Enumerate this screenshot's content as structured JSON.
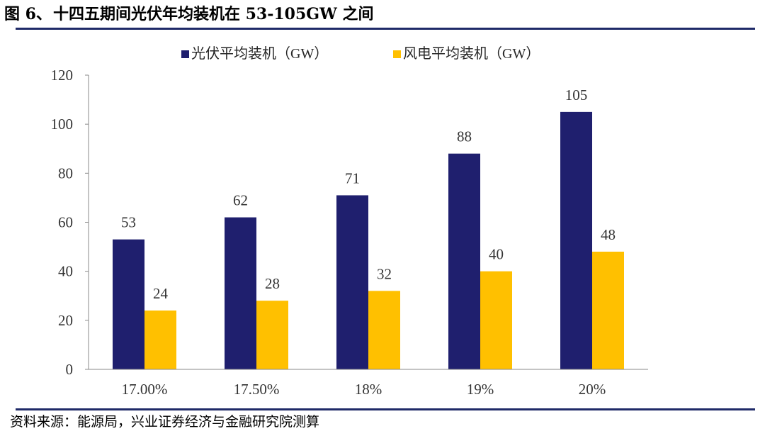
{
  "figure": {
    "label": "图 6、",
    "title": "十四五期间光伏年均装机在 53-105GW 之间"
  },
  "source": {
    "label": "资料来源：",
    "text": "能源局，兴业证券经济与金融研究院测算"
  },
  "chart_data": {
    "type": "bar",
    "title": "",
    "xlabel": "",
    "ylabel": "",
    "categories": [
      "17.00%",
      "17.50%",
      "18%",
      "19%",
      "20%"
    ],
    "series": [
      {
        "name": "光伏平均装机（GW）",
        "values": [
          53,
          62,
          71,
          88,
          105
        ],
        "color": "#1f1f6e"
      },
      {
        "name": "风电平均装机（GW）",
        "values": [
          24,
          28,
          32,
          40,
          48
        ],
        "color": "#ffc000"
      }
    ],
    "ylim": [
      0,
      120
    ],
    "yticks": [
      0,
      20,
      40,
      60,
      80,
      100,
      120
    ],
    "data_labels": true,
    "grid": false,
    "legend": "top-center"
  }
}
